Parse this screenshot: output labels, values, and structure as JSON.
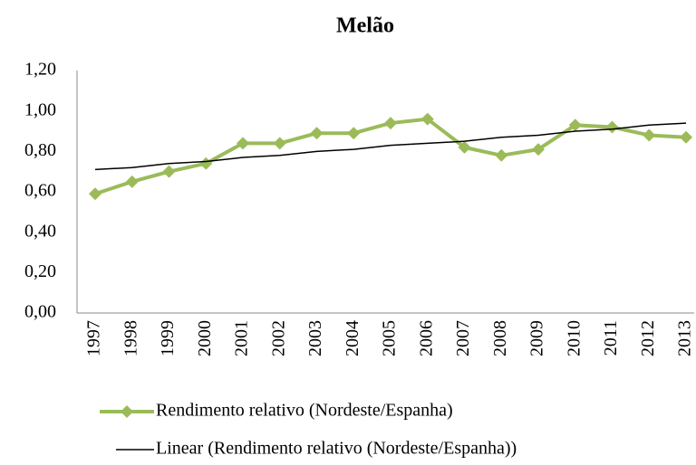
{
  "chart_data": {
    "type": "line",
    "title": "Melão",
    "categories": [
      "1997",
      "1998",
      "1999",
      "2000",
      "2001",
      "2002",
      "2003",
      "2004",
      "2005",
      "2006",
      "2007",
      "2008",
      "2009",
      "2010",
      "2011",
      "2012",
      "2013"
    ],
    "series": [
      {
        "name": "Rendimento relativo (Nordeste/Espanha)",
        "color": "#9bbb59",
        "marker": "diamond",
        "values": [
          0.59,
          0.65,
          0.7,
          0.74,
          0.84,
          0.84,
          0.89,
          0.89,
          0.94,
          0.96,
          0.82,
          0.78,
          0.81,
          0.93,
          0.92,
          0.88,
          0.87
        ]
      },
      {
        "name": "Linear (Rendimento relativo (Nordeste/Espanha))",
        "color": "#000000",
        "values": [
          0.71,
          0.72,
          0.74,
          0.75,
          0.77,
          0.78,
          0.8,
          0.81,
          0.83,
          0.84,
          0.85,
          0.87,
          0.88,
          0.9,
          0.91,
          0.93,
          0.94
        ]
      }
    ],
    "ylim": [
      0,
      1.2
    ],
    "yticks": [
      {
        "value": 0,
        "label": "0,00"
      },
      {
        "value": 0.2,
        "label": "0,20"
      },
      {
        "value": 0.4,
        "label": "0,40"
      },
      {
        "value": 0.6,
        "label": "0,60"
      },
      {
        "value": 0.8,
        "label": "0,80"
      },
      {
        "value": 1.0,
        "label": "1,00"
      },
      {
        "value": 1.2,
        "label": "1,20"
      }
    ],
    "legend": "bottom"
  }
}
